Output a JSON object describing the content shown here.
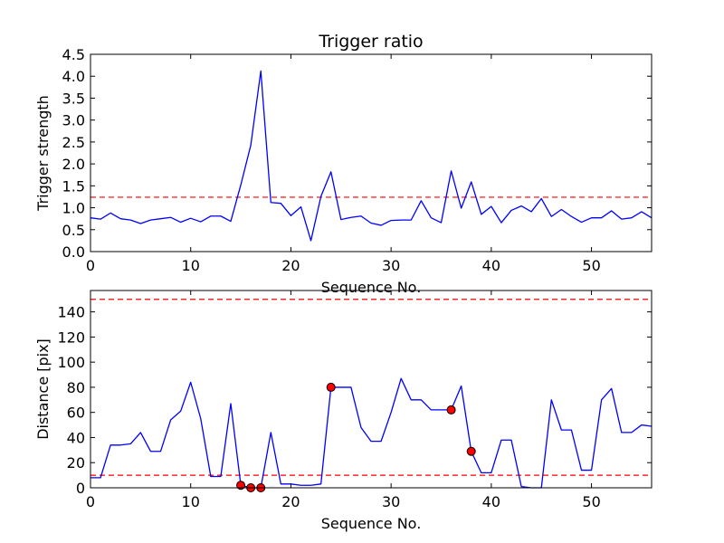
{
  "chart_data": [
    {
      "type": "line",
      "title": "Trigger ratio",
      "xlabel": "Sequence No.",
      "ylabel": "Trigger strength",
      "xlim": [
        0,
        56
      ],
      "ylim": [
        0,
        4.5
      ],
      "xticks": [
        0,
        10,
        20,
        30,
        40,
        50
      ],
      "yticks": [
        0.0,
        0.5,
        1.0,
        1.5,
        2.0,
        2.5,
        3.0,
        3.5,
        4.0,
        4.5
      ],
      "xtick_labels": [
        "0",
        "10",
        "20",
        "30",
        "40",
        "50"
      ],
      "ytick_labels": [
        "0.0",
        "0.5",
        "1.0",
        "1.5",
        "2.0",
        "2.5",
        "3.0",
        "3.5",
        "4.0",
        "4.5"
      ],
      "grid": false,
      "series": [
        {
          "color": "#0000ff",
          "x": [
            0,
            1,
            2,
            3,
            4,
            5,
            6,
            7,
            8,
            9,
            10,
            11,
            12,
            13,
            14,
            15,
            16,
            17,
            18,
            19,
            20,
            21,
            22,
            23,
            24,
            25,
            26,
            27,
            28,
            29,
            30,
            31,
            32,
            33,
            34,
            35,
            36,
            37,
            38,
            39,
            40,
            41,
            42,
            43,
            44,
            45,
            46,
            47,
            48,
            49,
            50,
            51,
            52,
            53,
            54,
            55,
            56
          ],
          "y": [
            0.77,
            0.74,
            0.88,
            0.75,
            0.72,
            0.64,
            0.72,
            0.75,
            0.78,
            0.67,
            0.76,
            0.68,
            0.81,
            0.81,
            0.69,
            1.52,
            2.43,
            4.12,
            1.12,
            1.1,
            0.82,
            1.02,
            0.25,
            1.26,
            1.82,
            0.73,
            0.78,
            0.81,
            0.65,
            0.6,
            0.71,
            0.72,
            0.72,
            1.16,
            0.77,
            0.66,
            1.84,
            0.99,
            1.59,
            0.85,
            1.03,
            0.66,
            0.94,
            1.04,
            0.91,
            1.21,
            0.8,
            0.96,
            0.8,
            0.67,
            0.77,
            0.77,
            0.93,
            0.74,
            0.77,
            0.91,
            0.77
          ]
        }
      ],
      "reference_lines": [
        {
          "y": 1.24,
          "color": "#ff0000",
          "style": "dashed"
        }
      ]
    },
    {
      "type": "line",
      "title": "",
      "xlabel": "Sequence No.",
      "ylabel": "Distance [pix]",
      "xlim": [
        0,
        56
      ],
      "ylim": [
        0,
        157
      ],
      "xticks": [
        0,
        10,
        20,
        30,
        40,
        50
      ],
      "yticks": [
        0,
        20,
        40,
        60,
        80,
        100,
        120,
        140
      ],
      "xtick_labels": [
        "0",
        "10",
        "20",
        "30",
        "40",
        "50"
      ],
      "ytick_labels": [
        "0",
        "20",
        "40",
        "60",
        "80",
        "100",
        "120",
        "140"
      ],
      "grid": false,
      "series": [
        {
          "color": "#0000ff",
          "x": [
            0,
            1,
            2,
            3,
            4,
            5,
            6,
            7,
            8,
            9,
            10,
            11,
            12,
            13,
            14,
            15,
            16,
            17,
            18,
            19,
            20,
            21,
            22,
            23,
            24,
            25,
            26,
            27,
            28,
            29,
            30,
            31,
            32,
            33,
            34,
            35,
            36,
            37,
            38,
            39,
            40,
            41,
            42,
            43,
            44,
            45,
            46,
            47,
            48,
            49,
            50,
            51,
            52,
            53,
            54,
            55,
            56
          ],
          "y": [
            8,
            8,
            34,
            34,
            35,
            44,
            29,
            29,
            54,
            61,
            84,
            55,
            9,
            9,
            67,
            2,
            0,
            0,
            44,
            3,
            3,
            2,
            2,
            3,
            80,
            80,
            80,
            48,
            37,
            37,
            60,
            87,
            70,
            70,
            62,
            62,
            62,
            81,
            29,
            12,
            12,
            38,
            38,
            1,
            0,
            0,
            70,
            46,
            46,
            14,
            14,
            70,
            79,
            44,
            44,
            50,
            49
          ]
        }
      ],
      "markers": {
        "color": "#ff0000",
        "edge_color": "#000000",
        "points": [
          {
            "x": 15,
            "y": 2
          },
          {
            "x": 16,
            "y": 0
          },
          {
            "x": 17,
            "y": 0
          },
          {
            "x": 24,
            "y": 80
          },
          {
            "x": 36,
            "y": 62
          },
          {
            "x": 38,
            "y": 29
          }
        ]
      },
      "reference_lines": [
        {
          "y": 10,
          "color": "#ff0000",
          "style": "dashed"
        },
        {
          "y": 150,
          "color": "#ff0000",
          "style": "dashed"
        }
      ]
    }
  ]
}
